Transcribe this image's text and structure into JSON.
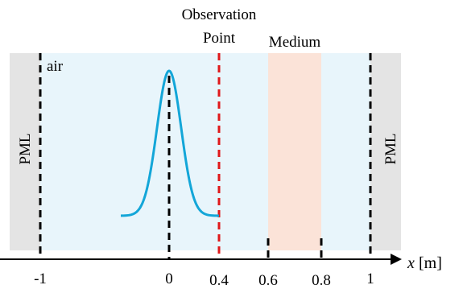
{
  "labels": {
    "observation_line1": "Observation",
    "observation_line2": "Point",
    "medium": "Medium",
    "air": "air",
    "pml_left": "PML",
    "pml_right": "PML",
    "x_axis_var": "x",
    "x_axis_unit": "[m]"
  },
  "ticks": [
    "-1",
    "0",
    "0.4",
    "0.6",
    "0.8",
    "1"
  ],
  "colors": {
    "pml": "#e4e4e4",
    "air": "#e8f5fb",
    "medium": "#fbe3d8",
    "pulse": "#13a6d8",
    "observation_line": "#e0191b",
    "boundary_line": "#000000"
  }
}
